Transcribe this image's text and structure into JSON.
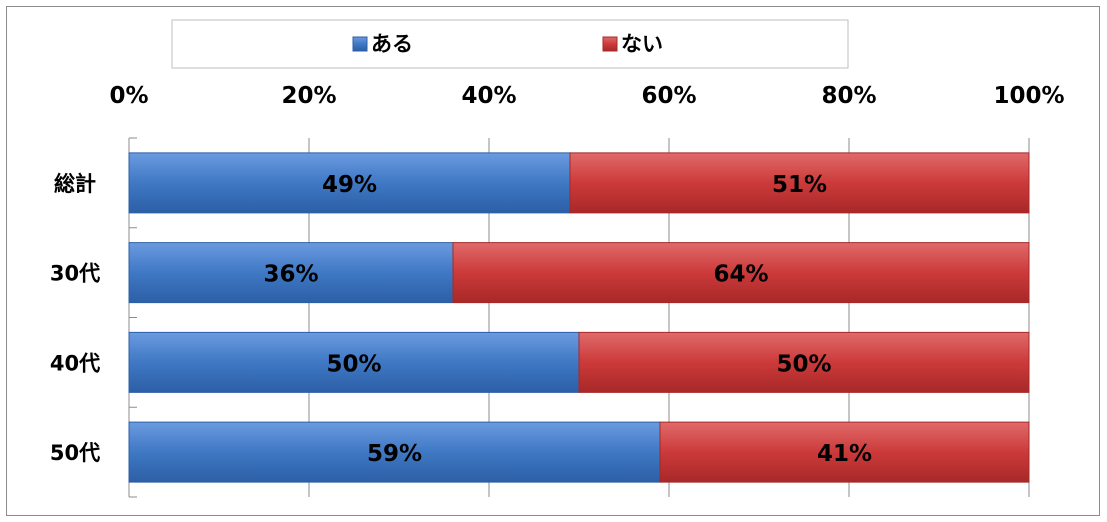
{
  "chart_data": {
    "type": "bar",
    "orientation": "horizontal",
    "stacked": true,
    "percent": true,
    "categories": [
      "総計",
      "30代",
      "40代",
      "50代"
    ],
    "series": [
      {
        "name": "ある",
        "values": [
          49,
          36,
          50,
          59
        ],
        "labels": [
          "49%",
          "36%",
          "50%",
          "59%"
        ],
        "color": "#3f78c4"
      },
      {
        "name": "ない",
        "values": [
          51,
          64,
          50,
          41
        ],
        "labels": [
          "51%",
          "64%",
          "50%",
          "41%"
        ],
        "color": "#cc3a3a"
      }
    ],
    "xticks": [
      "0%",
      "20%",
      "40%",
      "60%",
      "80%",
      "100%"
    ],
    "xlim": [
      0,
      100
    ],
    "xaxis_position": "top",
    "grid": true,
    "legend_position": "top"
  }
}
